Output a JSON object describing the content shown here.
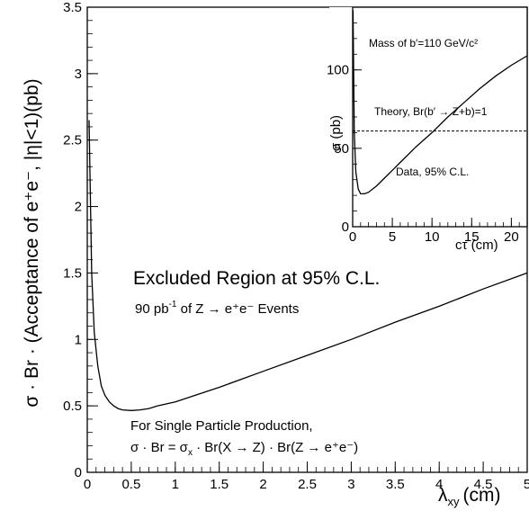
{
  "chart_data": [
    {
      "type": "line",
      "ylabel": "σ · Br · (Acceptance of e⁺e⁻, |η|<1)(pb)",
      "xlabel_main": "λ",
      "xlabel_sub": "xy",
      "xlabel_unit": "(cm)",
      "xlim": [
        0,
        5
      ],
      "ylim": [
        0,
        3.5
      ],
      "x_ticks": [
        0,
        0.5,
        1,
        1.5,
        2,
        2.5,
        3,
        3.5,
        4,
        4.5,
        5
      ],
      "x_tick_labels": [
        "0",
        "0.5",
        "1",
        "1.5",
        "2",
        "2.5",
        "3",
        "3.5",
        "4",
        "4.5",
        "5"
      ],
      "y_ticks": [
        0,
        0.5,
        1,
        1.5,
        2,
        2.5,
        3,
        3.5
      ],
      "y_tick_labels": [
        "0",
        "0.5",
        "1",
        "1.5",
        "2",
        "2.5",
        "3",
        "3.5"
      ],
      "annotations": {
        "excluded": "Excluded Region at 95% C.L.",
        "lumi_a": "90 pb",
        "lumi_exp": "-1",
        "lumi_b": " of Z → e⁺e⁻ Events",
        "single_a": "For Single Particle Production,",
        "single_b": "σ · Br = σ",
        "single_sub": "x",
        "single_c": " · Br(X → Z) · Br(Z → e⁺e⁻)"
      },
      "series": [
        {
          "x": [
            0.02,
            0.05,
            0.08,
            0.12,
            0.16,
            0.2,
            0.25,
            0.3,
            0.35,
            0.4,
            0.5,
            0.6,
            0.7,
            0.8,
            1.0,
            1.5,
            2.0,
            2.5,
            3.0,
            3.5,
            4.0,
            4.5,
            5.0
          ],
          "y": [
            2.65,
            1.5,
            1.05,
            0.8,
            0.65,
            0.58,
            0.53,
            0.5,
            0.48,
            0.47,
            0.465,
            0.47,
            0.48,
            0.5,
            0.53,
            0.64,
            0.76,
            0.88,
            1.0,
            1.13,
            1.25,
            1.38,
            1.5
          ]
        }
      ]
    },
    {
      "type": "line",
      "ylabel": "σ (pb)",
      "xlabel": "cτ (cm)",
      "xlim": [
        0,
        22
      ],
      "ylim": [
        0,
        140
      ],
      "x_ticks": [
        0,
        5,
        10,
        15,
        20
      ],
      "x_tick_labels": [
        "0",
        "5",
        "10",
        "15",
        "20"
      ],
      "y_ticks": [
        0,
        50,
        100
      ],
      "y_tick_labels": [
        "0",
        "50",
        "100"
      ],
      "annotations": {
        "mass": "Mass of b′=110 GeV/c²",
        "theory": "Theory, Br(b′ → Z+b)=1",
        "data": "Data, 95% C.L."
      },
      "theory_value": 61,
      "series": [
        {
          "x": [
            0.05,
            0.2,
            0.4,
            0.7,
            1.0,
            1.5,
            2.0,
            3.0,
            4.0,
            5.0,
            6.0,
            8.0,
            10.0,
            12.0,
            14.0,
            16.0,
            18.0,
            20.0,
            22.0
          ],
          "y": [
            138,
            60,
            35,
            24,
            21,
            21,
            22,
            26,
            31,
            36,
            41,
            51,
            60,
            70,
            79,
            88,
            96,
            103,
            109
          ]
        }
      ]
    }
  ]
}
